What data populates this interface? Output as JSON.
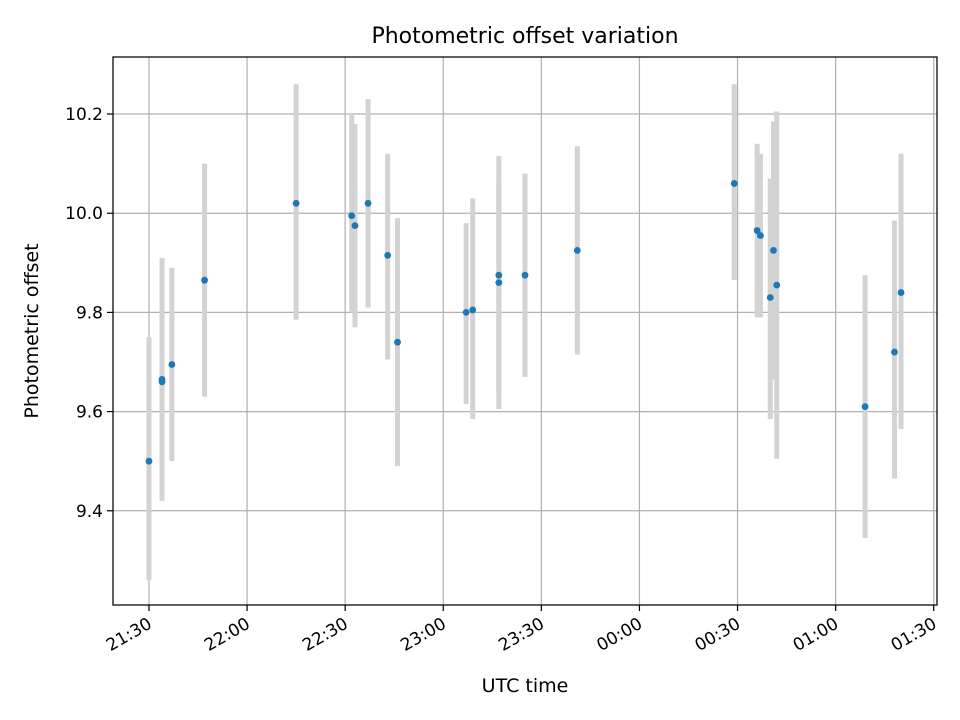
{
  "chart_data": {
    "type": "scatter",
    "title": "Photometric offset variation",
    "xlabel": "UTC time",
    "ylabel": "Photometric offset",
    "x_axis_kind": "time",
    "xlim": [
      "21:19",
      "01:31"
    ],
    "ylim": [
      9.21,
      10.315
    ],
    "x_ticks": [
      {
        "label": "21:30",
        "t": "21:30"
      },
      {
        "label": "22:00",
        "t": "22:00"
      },
      {
        "label": "22:30",
        "t": "22:30"
      },
      {
        "label": "23:00",
        "t": "23:00"
      },
      {
        "label": "23:30",
        "t": "23:30"
      },
      {
        "label": "00:00",
        "t": "00:00"
      },
      {
        "label": "00:30",
        "t": "00:30"
      },
      {
        "label": "01:00",
        "t": "01:00"
      },
      {
        "label": "01:30",
        "t": "01:30"
      }
    ],
    "y_ticks": [
      9.4,
      9.6,
      9.8,
      10.0,
      10.2
    ],
    "grid": true,
    "point_color": "#1f77b4",
    "errorbar_color": "#d3d3d3",
    "points": [
      {
        "t": "21:30",
        "y": 9.5,
        "lo": 9.26,
        "hi": 9.75
      },
      {
        "t": "21:34",
        "y": 9.665,
        "lo": 9.42,
        "hi": 9.91
      },
      {
        "t": "21:34",
        "y": 9.66,
        "lo": 9.43,
        "hi": 9.89
      },
      {
        "t": "21:37",
        "y": 9.695,
        "lo": 9.5,
        "hi": 9.89
      },
      {
        "t": "21:47",
        "y": 9.865,
        "lo": 9.63,
        "hi": 10.1
      },
      {
        "t": "22:15",
        "y": 10.02,
        "lo": 9.785,
        "hi": 10.26
      },
      {
        "t": "22:32",
        "y": 9.995,
        "lo": 9.8,
        "hi": 10.2
      },
      {
        "t": "22:33",
        "y": 9.975,
        "lo": 9.77,
        "hi": 10.18
      },
      {
        "t": "22:37",
        "y": 10.02,
        "lo": 9.81,
        "hi": 10.23
      },
      {
        "t": "22:43",
        "y": 9.915,
        "lo": 9.705,
        "hi": 10.12
      },
      {
        "t": "22:46",
        "y": 9.74,
        "lo": 9.49,
        "hi": 9.99
      },
      {
        "t": "23:07",
        "y": 9.8,
        "lo": 9.615,
        "hi": 9.98
      },
      {
        "t": "23:09",
        "y": 9.805,
        "lo": 9.585,
        "hi": 10.03
      },
      {
        "t": "23:17",
        "y": 9.86,
        "lo": 9.64,
        "hi": 10.07
      },
      {
        "t": "23:17",
        "y": 9.875,
        "lo": 9.605,
        "hi": 10.115
      },
      {
        "t": "23:25",
        "y": 9.875,
        "lo": 9.67,
        "hi": 10.08
      },
      {
        "t": "23:41",
        "y": 9.925,
        "lo": 9.715,
        "hi": 10.135
      },
      {
        "t": "00:29",
        "y": 10.06,
        "lo": 9.865,
        "hi": 10.26
      },
      {
        "t": "00:36",
        "y": 9.965,
        "lo": 9.79,
        "hi": 10.14
      },
      {
        "t": "00:37",
        "y": 9.955,
        "lo": 9.79,
        "hi": 10.12
      },
      {
        "t": "00:40",
        "y": 9.83,
        "lo": 9.585,
        "hi": 10.07
      },
      {
        "t": "00:41",
        "y": 9.925,
        "lo": 9.665,
        "hi": 10.185
      },
      {
        "t": "00:42",
        "y": 9.855,
        "lo": 9.505,
        "hi": 10.205
      },
      {
        "t": "01:09",
        "y": 9.61,
        "lo": 9.345,
        "hi": 9.875
      },
      {
        "t": "01:18",
        "y": 9.72,
        "lo": 9.465,
        "hi": 9.985
      },
      {
        "t": "01:20",
        "y": 9.84,
        "lo": 9.565,
        "hi": 10.12
      }
    ]
  }
}
